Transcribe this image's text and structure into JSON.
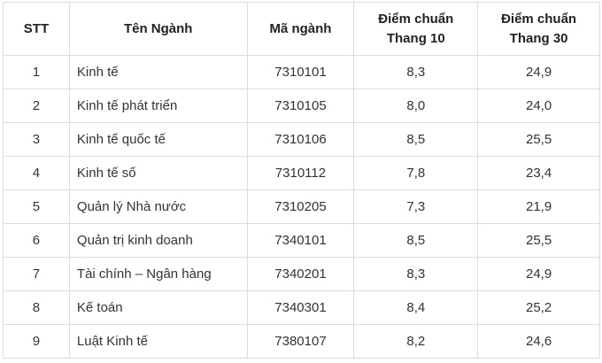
{
  "headers": [
    "STT",
    "Tên Ngành",
    "Mã ngành",
    "Điểm chuẩn Thang 10",
    "Điểm chuẩn Thang 30"
  ],
  "header_lines": {
    "col4": [
      "Điểm chuẩn",
      "Thang 10"
    ],
    "col5": [
      "Điểm chuẩn",
      "Thang 30"
    ]
  },
  "rows": [
    [
      "1",
      "Kinh tế",
      "7310101",
      "8,3",
      "24,9"
    ],
    [
      "2",
      "Kinh tế phát triển",
      "7310105",
      "8,0",
      "24,0"
    ],
    [
      "3",
      "Kinh tế quốc tế",
      "7310106",
      "8,5",
      "25,5"
    ],
    [
      "4",
      "Kinh tế số",
      "7310112",
      "7,8",
      "23,4"
    ],
    [
      "5",
      "Quản lý Nhà nước",
      "7310205",
      "7,3",
      "21,9"
    ],
    [
      "6",
      "Quản trị kinh doanh",
      "7340101",
      "8,5",
      "25,5"
    ],
    [
      "7",
      "Tài chính – Ngân hàng",
      "7340201",
      "8,3",
      "24,9"
    ],
    [
      "8",
      "Kế toán",
      "7340301",
      "8,4",
      "25,2"
    ],
    [
      "9",
      "Luật Kinh tế",
      "7380107",
      "8,2",
      "24,6"
    ]
  ]
}
